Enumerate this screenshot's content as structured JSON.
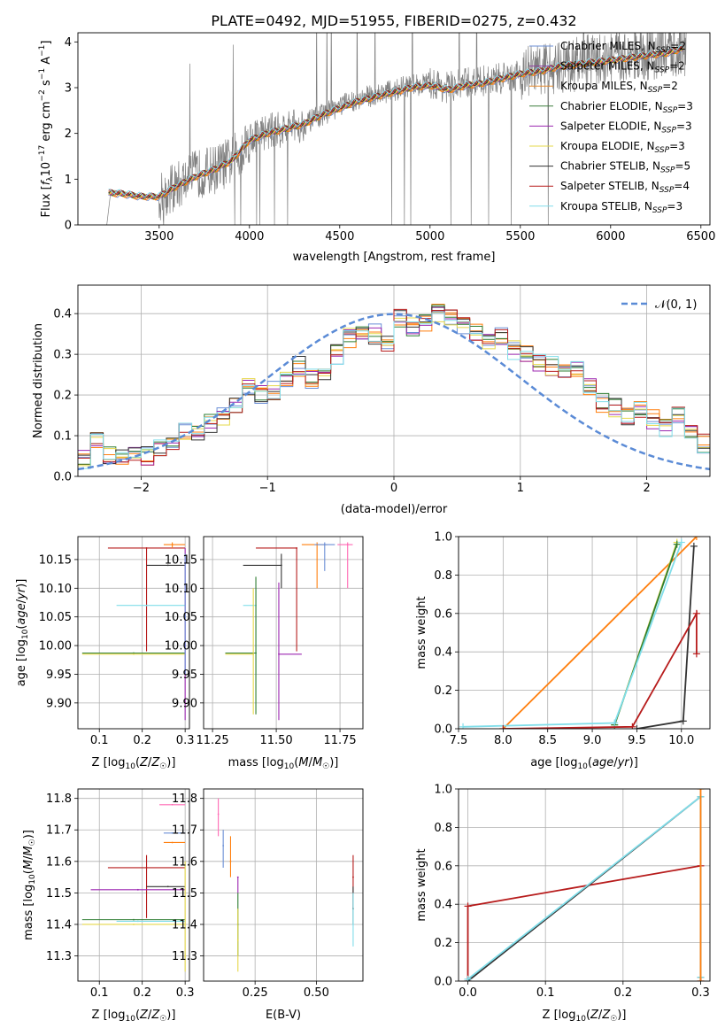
{
  "figure_title": "PLATE=0492, MJD=51955, FIBERID=0275, z=0.432",
  "model_colors": [
    "#6b8fd6",
    "#ff7f0e",
    "#ff7f0e",
    "#2e7d32",
    "#9c27b0",
    "#e6d84a",
    "#333333",
    "#b71c1c",
    "#80deea"
  ],
  "legend_entries": [
    {
      "name": "Chabrier MILES",
      "nssp": "2",
      "color": "#6b8fd6"
    },
    {
      "name": "Salpeter MILES",
      "nssp": "2",
      "color": "#8e3fa0"
    },
    {
      "name": "Kroupa MILES",
      "nssp": "2",
      "color": "#e68a2e"
    },
    {
      "name": "Chabrier ELODIE",
      "nssp": "3",
      "color": "#3f7f3f"
    },
    {
      "name": "Salpeter ELODIE",
      "nssp": "3",
      "color": "#9c27b0"
    },
    {
      "name": "Kroupa ELODIE",
      "nssp": "3",
      "color": "#e6d84a"
    },
    {
      "name": "Chabrier STELIB",
      "nssp": "5",
      "color": "#333333"
    },
    {
      "name": "Salpeter STELIB",
      "nssp": "4",
      "color": "#b71c1c"
    },
    {
      "name": "Kroupa STELIB",
      "nssp": "3",
      "color": "#80deea"
    }
  ],
  "chart_data": [
    {
      "id": "spectrum",
      "type": "line",
      "xlabel": "wavelength [Angstrom, rest frame]",
      "ylabel": "Flux [f_λ 10^-17 erg cm^-2 s^-1 A^-1]",
      "xlim": [
        3050,
        6550
      ],
      "ylim": [
        0,
        4.2
      ],
      "xticks": [
        3500,
        4000,
        4500,
        5000,
        5500,
        6000,
        6500
      ],
      "yticks": [
        0,
        1,
        2,
        3,
        4
      ],
      "legend": "top-right",
      "data_series": {
        "name": "data",
        "color": "#808080",
        "x": [
          3210,
          3230,
          3250,
          3300,
          3350,
          3400,
          3450,
          3500,
          3600,
          3700,
          3800,
          3900,
          3950,
          4000,
          4100,
          4200,
          4300,
          4400,
          4500,
          4600,
          4700,
          4800,
          4900,
          5000,
          5100,
          5200,
          5300,
          5400,
          5500,
          5600,
          5700,
          5800,
          5900,
          6000,
          6100,
          6200,
          6300,
          6400
        ],
        "y": [
          0.0,
          0.7,
          0.72,
          0.7,
          0.66,
          0.63,
          0.6,
          0.6,
          0.85,
          1.1,
          1.2,
          1.4,
          1.6,
          1.9,
          2.05,
          2.1,
          2.2,
          2.4,
          2.6,
          2.75,
          2.85,
          2.95,
          3.05,
          3.1,
          3.0,
          3.1,
          3.15,
          3.2,
          3.3,
          3.4,
          3.45,
          3.5,
          3.6,
          3.65,
          3.7,
          3.75,
          3.8,
          3.85
        ]
      },
      "model_series": {
        "name": "models",
        "x": [
          3220,
          3300,
          3400,
          3500,
          3600,
          3700,
          3800,
          3900,
          4000,
          4100,
          4200,
          4300,
          4400,
          4500,
          4600,
          4700,
          4800,
          4900,
          5000,
          5100,
          5200,
          5300,
          5400,
          5500,
          5600,
          5700,
          5800,
          5900,
          6000,
          6100,
          6200,
          6300,
          6400
        ],
        "y": [
          0.7,
          0.68,
          0.62,
          0.62,
          0.85,
          1.05,
          1.2,
          1.4,
          1.85,
          2.0,
          2.1,
          2.2,
          2.4,
          2.55,
          2.7,
          2.8,
          2.9,
          3.0,
          3.05,
          2.95,
          3.05,
          3.1,
          3.2,
          3.3,
          3.35,
          3.45,
          3.5,
          3.55,
          3.6,
          3.65,
          3.7,
          3.75,
          3.85
        ]
      }
    },
    {
      "id": "residuals",
      "type": "line",
      "xlabel": "(data-model)/error",
      "ylabel": "Normed distribution",
      "xlim": [
        -2.5,
        2.5
      ],
      "ylim": [
        0,
        0.47
      ],
      "xticks": [
        -2,
        -1,
        0,
        1,
        2
      ],
      "yticks": [
        0.0,
        0.1,
        0.2,
        0.3,
        0.4
      ],
      "legend_label": "𝒩(0, 1)",
      "legend": "top-right",
      "bin_width": 0.1,
      "bin_start": -2.5,
      "base_values": [
        0.04,
        0.085,
        0.05,
        0.04,
        0.06,
        0.05,
        0.07,
        0.09,
        0.11,
        0.1,
        0.13,
        0.15,
        0.18,
        0.22,
        0.2,
        0.21,
        0.24,
        0.27,
        0.24,
        0.25,
        0.3,
        0.34,
        0.36,
        0.35,
        0.33,
        0.39,
        0.37,
        0.38,
        0.4,
        0.39,
        0.37,
        0.35,
        0.33,
        0.34,
        0.31,
        0.3,
        0.28,
        0.27,
        0.25,
        0.26,
        0.22,
        0.18,
        0.17,
        0.15,
        0.16,
        0.14,
        0.12,
        0.15,
        0.1,
        0.08
      ]
    },
    {
      "id": "z-age",
      "type": "scatter",
      "xlabel": "Z [log10(Z/Z☉)]",
      "ylabel": "age [log10(age/yr)]",
      "xlim": [
        0.05,
        0.31
      ],
      "ylim": [
        9.855,
        10.19
      ],
      "xticks": [
        0.1,
        0.2,
        0.3
      ],
      "yticks": [
        9.9,
        9.95,
        10.0,
        10.05,
        10.1,
        10.15
      ],
      "points": [
        {
          "x": 0.21,
          "y": 10.17,
          "xerr": [
            0.12,
            0.3
          ],
          "yerr": [
            9.99,
            10.17
          ],
          "color": "#b71c1c"
        },
        {
          "x": 0.27,
          "y": 10.176,
          "xerr": [
            0.25,
            0.3
          ],
          "yerr": [
            10.17,
            10.18
          ],
          "color": "#ff7f0e"
        },
        {
          "x": 0.26,
          "y": 10.14,
          "xerr": [
            0.21,
            0.3
          ],
          "yerr": [
            10.14,
            10.14
          ],
          "color": "#333333"
        },
        {
          "x": 0.21,
          "y": 10.07,
          "xerr": [
            0.14,
            0.3
          ],
          "yerr": [
            10.07,
            10.07
          ],
          "color": "#80deea"
        },
        {
          "x": 0.18,
          "y": 9.987,
          "xerr": [
            0.06,
            0.3
          ],
          "yerr": [
            9.987,
            9.987
          ],
          "color": "#2e7d32"
        },
        {
          "x": 0.18,
          "y": 9.985,
          "xerr": [
            0.06,
            0.3
          ],
          "yerr": [
            9.985,
            9.985
          ],
          "color": "#e6d84a"
        },
        {
          "x": 0.3,
          "y": 10.0,
          "xerr": [
            0.3,
            0.3
          ],
          "yerr": [
            9.87,
            10.17
          ],
          "color": "#9c27b0"
        },
        {
          "x": 0.3,
          "y": 10.05,
          "xerr": [
            0.3,
            0.3
          ],
          "yerr": [
            9.95,
            10.16
          ],
          "color": "#6b8fd6"
        }
      ]
    },
    {
      "id": "mass-age",
      "type": "scatter",
      "xlabel": "mass [log10(M/M☉)]",
      "ylabel": "",
      "xlim": [
        11.215,
        11.84
      ],
      "ylim": [
        9.855,
        10.19
      ],
      "xticks": [
        11.25,
        11.5,
        11.75
      ],
      "yticks": [
        9.9,
        9.95,
        10.0,
        10.05,
        10.1,
        10.15
      ],
      "points": [
        {
          "x": 11.58,
          "y": 10.17,
          "xerr": [
            11.42,
            11.58
          ],
          "yerr": [
            9.99,
            10.17
          ],
          "color": "#b71c1c"
        },
        {
          "x": 11.66,
          "y": 10.176,
          "xerr": [
            11.6,
            11.7
          ],
          "yerr": [
            10.1,
            10.18
          ],
          "color": "#ff7f0e"
        },
        {
          "x": 11.52,
          "y": 10.14,
          "xerr": [
            11.37,
            11.52
          ],
          "yerr": [
            10.1,
            10.16
          ],
          "color": "#333333"
        },
        {
          "x": 11.42,
          "y": 10.07,
          "xerr": [
            11.37,
            11.42
          ],
          "yerr": [
            9.95,
            10.1
          ],
          "color": "#80deea"
        },
        {
          "x": 11.42,
          "y": 9.987,
          "xerr": [
            11.3,
            11.42
          ],
          "yerr": [
            9.88,
            10.12
          ],
          "color": "#2e7d32"
        },
        {
          "x": 11.41,
          "y": 9.985,
          "xerr": [
            11.3,
            11.41
          ],
          "yerr": [
            9.88,
            10.1
          ],
          "color": "#e6d84a"
        },
        {
          "x": 11.51,
          "y": 9.985,
          "xerr": [
            11.51,
            11.6
          ],
          "yerr": [
            9.87,
            10.11
          ],
          "color": "#9c27b0"
        },
        {
          "x": 11.69,
          "y": 10.176,
          "xerr": [
            11.65,
            11.73
          ],
          "yerr": [
            10.13,
            10.18
          ],
          "color": "#6b8fd6"
        },
        {
          "x": 11.78,
          "y": 10.176,
          "xerr": [
            11.74,
            11.8
          ],
          "yerr": [
            10.1,
            10.18
          ],
          "color": "#ff69b4"
        }
      ]
    },
    {
      "id": "age-weight",
      "type": "line",
      "xlabel": "age [log10(age/yr)]",
      "ylabel": "mass weight",
      "xlim": [
        7.5,
        10.32
      ],
      "ylim": [
        0,
        1.0
      ],
      "xticks": [
        7.5,
        8.0,
        8.5,
        9.0,
        9.5,
        10.0
      ],
      "yticks": [
        0.0,
        0.2,
        0.4,
        0.6,
        0.8,
        1.0
      ],
      "series": [
        {
          "color": "#ff7f0e",
          "x": [
            8.0,
            10.17
          ],
          "y": [
            0.0,
            1.0
          ]
        },
        {
          "color": "#e6d84a",
          "x": [
            9.25,
            9.95
          ],
          "y": [
            0.02,
            0.97
          ]
        },
        {
          "color": "#2e7d32",
          "x": [
            9.25,
            9.95
          ],
          "y": [
            0.02,
            0.96
          ]
        },
        {
          "color": "#80deea",
          "x": [
            7.55,
            9.25,
            10.0
          ],
          "y": [
            0.01,
            0.03,
            0.97
          ]
        },
        {
          "color": "#333333",
          "x": [
            9.5,
            10.02,
            10.14
          ],
          "y": [
            0.0,
            0.04,
            0.95
          ]
        },
        {
          "color": "#b71c1c",
          "x": [
            8.0,
            9.45,
            10.17,
            10.17
          ],
          "y": [
            0.0,
            0.01,
            0.6,
            0.39
          ]
        }
      ]
    },
    {
      "id": "z-mass",
      "type": "scatter",
      "xlabel": "Z [log10(Z/Z☉)]",
      "ylabel": "mass [log10(M/M☉)]",
      "xlim": [
        0.05,
        0.31
      ],
      "ylim": [
        11.22,
        11.83
      ],
      "xticks": [
        0.1,
        0.2,
        0.3
      ],
      "yticks": [
        11.3,
        11.4,
        11.5,
        11.6,
        11.7,
        11.8
      ],
      "points": [
        {
          "x": 0.21,
          "y": 11.58,
          "xerr": [
            0.12,
            0.3
          ],
          "yerr": [
            11.42,
            11.62
          ],
          "color": "#b71c1c"
        },
        {
          "x": 0.19,
          "y": 11.51,
          "xerr": [
            0.08,
            0.3
          ],
          "yerr": [
            11.51,
            11.51
          ],
          "color": "#9c27b0"
        },
        {
          "x": 0.26,
          "y": 11.52,
          "xerr": [
            0.21,
            0.3
          ],
          "yerr": [
            11.52,
            11.52
          ],
          "color": "#333333"
        },
        {
          "x": 0.18,
          "y": 11.415,
          "xerr": [
            0.06,
            0.3
          ],
          "yerr": [
            11.415,
            11.415
          ],
          "color": "#2e7d32"
        },
        {
          "x": 0.19,
          "y": 11.41,
          "xerr": [
            0.14,
            0.3
          ],
          "yerr": [
            11.41,
            11.41
          ],
          "color": "#80deea"
        },
        {
          "x": 0.18,
          "y": 11.4,
          "xerr": [
            0.06,
            0.3
          ],
          "yerr": [
            11.4,
            11.4
          ],
          "color": "#e6d84a"
        },
        {
          "x": 0.27,
          "y": 11.69,
          "xerr": [
            0.25,
            0.3
          ],
          "yerr": [
            11.69,
            11.69
          ],
          "color": "#6b8fd6"
        },
        {
          "x": 0.27,
          "y": 11.66,
          "xerr": [
            0.25,
            0.3
          ],
          "yerr": [
            11.66,
            11.66
          ],
          "color": "#ff7f0e"
        },
        {
          "x": 0.27,
          "y": 11.78,
          "xerr": [
            0.24,
            0.3
          ],
          "yerr": [
            11.78,
            11.78
          ],
          "color": "#ff69b4"
        },
        {
          "x": 0.3,
          "y": 11.3,
          "xerr": [
            0.3,
            0.3
          ],
          "yerr": [
            11.25,
            11.6
          ],
          "color": "#e6d84a"
        }
      ]
    },
    {
      "id": "ebv-mass",
      "type": "scatter",
      "xlabel": "E(B-V)",
      "ylabel": "",
      "xlim": [
        0.04,
        0.69
      ],
      "ylim": [
        11.22,
        11.83
      ],
      "xticks": [
        0.25,
        0.5
      ],
      "yticks": [
        11.3,
        11.4,
        11.5,
        11.6,
        11.7,
        11.8
      ],
      "points": [
        {
          "x": 0.1,
          "y": 11.75,
          "xerr": [
            0.1,
            0.1
          ],
          "yerr": [
            11.68,
            11.8
          ],
          "color": "#ff69b4"
        },
        {
          "x": 0.12,
          "y": 11.65,
          "xerr": [
            0.12,
            0.12
          ],
          "yerr": [
            11.58,
            11.7
          ],
          "color": "#6b8fd6"
        },
        {
          "x": 0.15,
          "y": 11.6,
          "xerr": [
            0.15,
            0.15
          ],
          "yerr": [
            11.55,
            11.68
          ],
          "color": "#ff7f0e"
        },
        {
          "x": 0.18,
          "y": 11.55,
          "xerr": [
            0.18,
            0.18
          ],
          "yerr": [
            11.5,
            11.55
          ],
          "color": "#9c27b0"
        },
        {
          "x": 0.18,
          "y": 11.4,
          "xerr": [
            0.18,
            0.18
          ],
          "yerr": [
            11.3,
            11.5
          ],
          "color": "#2e7d32"
        },
        {
          "x": 0.18,
          "y": 11.35,
          "xerr": [
            0.18,
            0.18
          ],
          "yerr": [
            11.25,
            11.45
          ],
          "color": "#e6d84a"
        },
        {
          "x": 0.65,
          "y": 11.55,
          "xerr": [
            0.65,
            0.65
          ],
          "yerr": [
            11.45,
            11.62
          ],
          "color": "#b71c1c"
        },
        {
          "x": 0.65,
          "y": 11.45,
          "xerr": [
            0.65,
            0.65
          ],
          "yerr": [
            11.4,
            11.52
          ],
          "color": "#333333"
        },
        {
          "x": 0.65,
          "y": 11.4,
          "xerr": [
            0.65,
            0.65
          ],
          "yerr": [
            11.33,
            11.5
          ],
          "color": "#80deea"
        }
      ]
    },
    {
      "id": "z-weight",
      "type": "line",
      "xlabel": "Z [log10(Z/Z☉)]",
      "ylabel": "mass weight",
      "xlim": [
        -0.012,
        0.312
      ],
      "ylim": [
        0,
        1.0
      ],
      "xticks": [
        0.0,
        0.1,
        0.2,
        0.3
      ],
      "yticks": [
        0.0,
        0.2,
        0.4,
        0.6,
        0.8,
        1.0
      ],
      "series": [
        {
          "color": "#b71c1c",
          "x": [
            0.0,
            0.0,
            0.3,
            0.3
          ],
          "y": [
            0.0,
            0.39,
            0.6,
            0.0
          ]
        },
        {
          "color": "#333333",
          "x": [
            0.0,
            0.3,
            0.3
          ],
          "y": [
            0.0,
            0.96,
            0.02
          ]
        },
        {
          "color": "#80deea",
          "x": [
            0.0,
            0.3,
            0.3
          ],
          "y": [
            0.01,
            0.96,
            0.02
          ]
        },
        {
          "color": "#ff7f0e",
          "x": [
            0.3,
            0.3
          ],
          "y": [
            0.0,
            1.0
          ]
        }
      ]
    }
  ]
}
